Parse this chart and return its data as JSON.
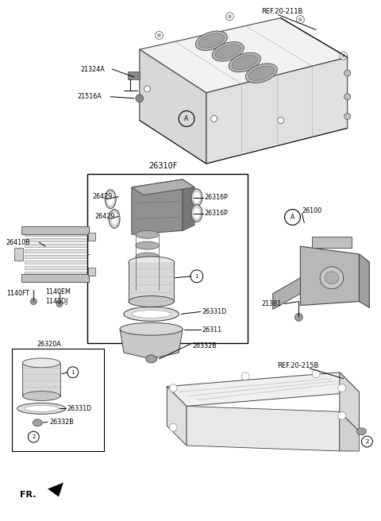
{
  "bg_color": "#ffffff",
  "fig_width": 4.8,
  "fig_height": 6.56,
  "dpi": 100,
  "labels": {
    "ref_211b": "REF.20-211B",
    "ref_215b": "REF.20-215B",
    "p21324a": "21324A",
    "p21516a": "21516A",
    "p26310f": "26310F",
    "p26429_1": "26429",
    "p26429_2": "26429",
    "p26316p_1": "26316P",
    "p26316p_2": "26316P",
    "p26410b": "26410B",
    "p1140ft": "1140FT",
    "p1140em": "1140EM",
    "p1140dj": "1140DJ",
    "p26331d": "26331D",
    "p26311": "26311",
    "p26332b": "26332B",
    "p26320a": "26320A",
    "p26331d_s": "26331D",
    "p26332b_s": "26332B",
    "p26100": "26100",
    "p21381": "21381",
    "fr": "FR."
  }
}
